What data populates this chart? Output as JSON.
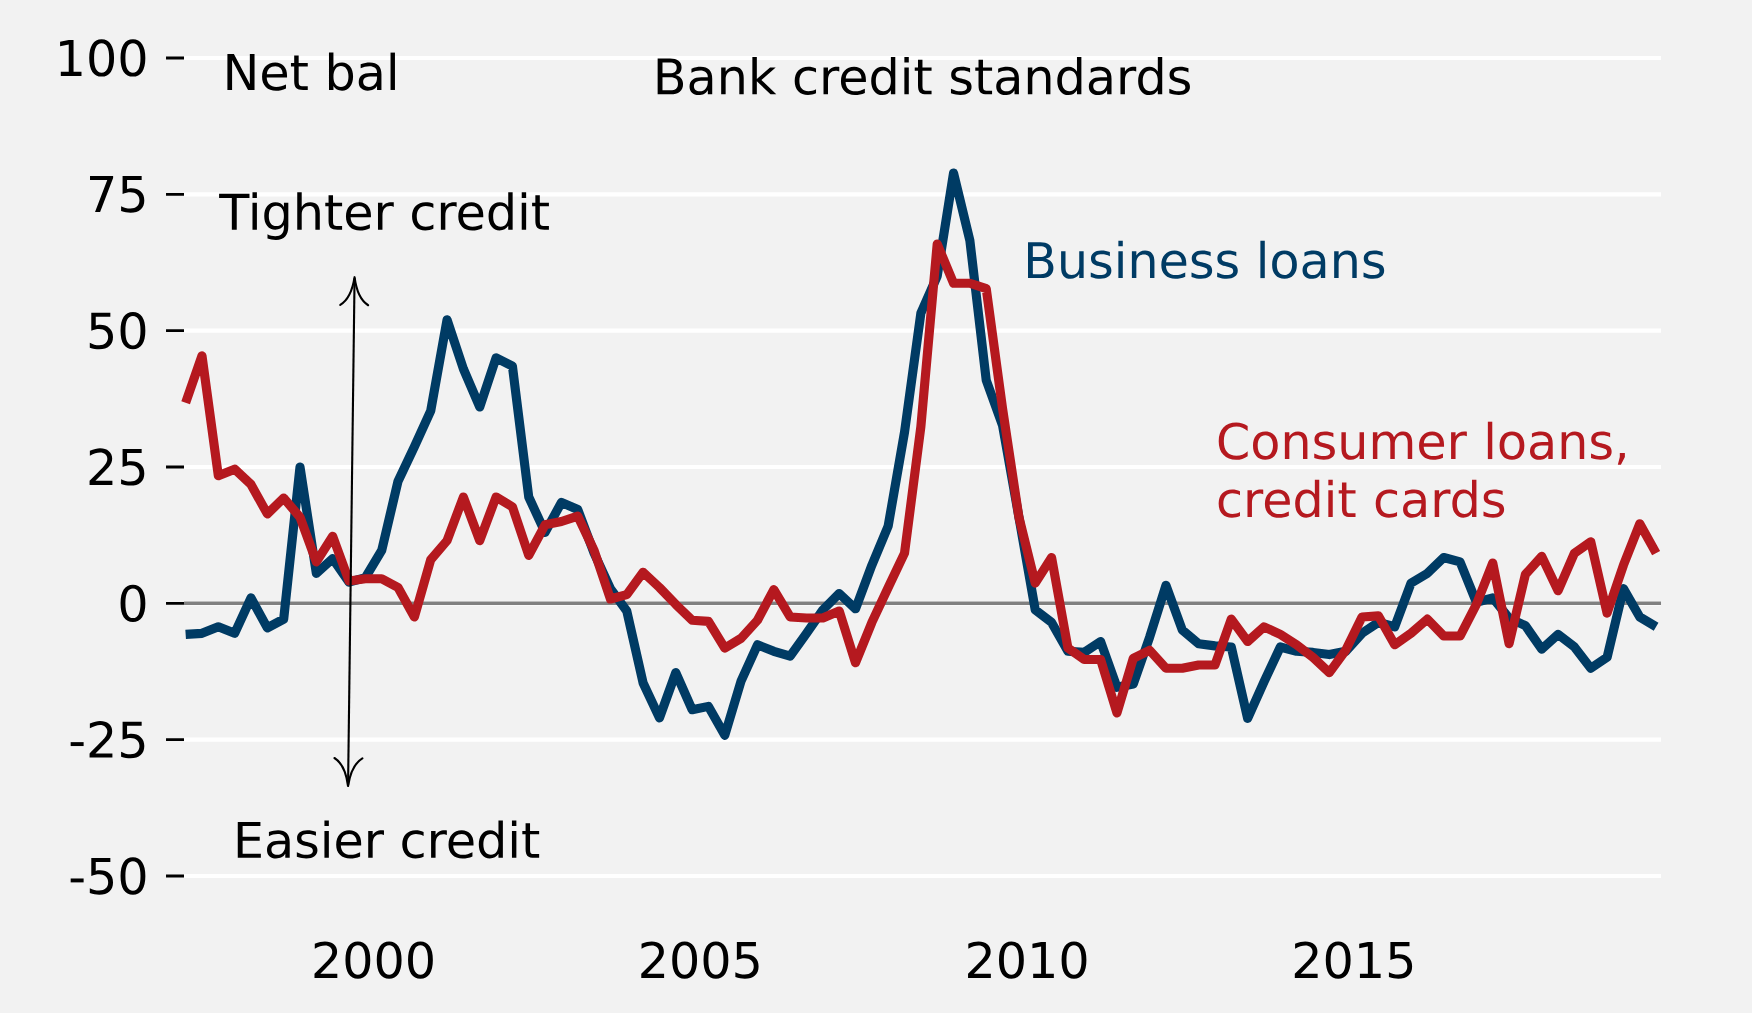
{
  "chart_data": {
    "type": "line",
    "title": "Bank credit standards",
    "ylabel": "Net bal",
    "annotations": [
      "Tighter credit",
      "Easier credit"
    ],
    "x": [
      1997.125,
      1997.375,
      1997.625,
      1997.875,
      1998.125,
      1998.375,
      1998.625,
      1998.875,
      1999.125,
      1999.375,
      1999.625,
      1999.875,
      2000.125,
      2000.375,
      2000.625,
      2000.875,
      2001.125,
      2001.375,
      2001.625,
      2001.875,
      2002.125,
      2002.375,
      2002.625,
      2002.875,
      2003.125,
      2003.375,
      2003.625,
      2003.875,
      2004.125,
      2004.375,
      2004.625,
      2004.875,
      2005.125,
      2005.375,
      2005.625,
      2005.875,
      2006.125,
      2006.375,
      2006.625,
      2006.875,
      2007.125,
      2007.375,
      2007.625,
      2007.875,
      2008.125,
      2008.375,
      2008.625,
      2008.875,
      2009.125,
      2009.375,
      2009.625,
      2009.875,
      2010.125,
      2010.375,
      2010.625,
      2010.875,
      2011.125,
      2011.375,
      2011.625,
      2011.875,
      2012.125,
      2012.375,
      2012.625,
      2012.875,
      2013.125,
      2013.375,
      2013.625,
      2013.875,
      2014.125,
      2014.375,
      2014.625,
      2014.875,
      2015.125,
      2015.375,
      2015.625,
      2015.875,
      2016.125,
      2016.375,
      2016.625,
      2016.875,
      2017.125,
      2017.375,
      2017.625,
      2017.875,
      2018.125,
      2018.375,
      2018.625,
      2018.875,
      2019.125,
      2019.375,
      2019.625
    ],
    "series": [
      {
        "name": "Business loans",
        "color": "#003b64",
        "values": [
          -5.7,
          -5.5,
          -4.3,
          -5.5,
          1.0,
          -4.5,
          -2.9,
          25,
          5.5,
          8.2,
          3.9,
          4.7,
          9.7,
          22.4,
          28.7,
          35.3,
          52,
          43,
          36,
          45,
          43.5,
          19.5,
          13,
          18.5,
          17.2,
          9.2,
          2.7,
          -1.4,
          -14.6,
          -21,
          -12.7,
          -19.5,
          -18.9,
          -24.2,
          -14.2,
          -7.6,
          -8.8,
          -9.7,
          -5.5,
          -1.2,
          1.8,
          -1.0,
          7,
          14.2,
          31.4,
          53.2,
          60,
          78.9,
          66.5,
          40.9,
          32.6,
          15.8,
          -1.2,
          -3.5,
          -8.8,
          -9,
          -7,
          -15.4,
          -14.8,
          -6.2,
          3.3,
          -4.9,
          -7.4,
          -7.8,
          -8,
          -21.1,
          -14.4,
          -8,
          -8.8,
          -9,
          -9.4,
          -8.8,
          -5.5,
          -3.5,
          -4.3,
          3.7,
          5.5,
          8.4,
          7.6,
          0.2,
          1,
          -2.7,
          -4.1,
          -8.4,
          -5.7,
          -8,
          -11.9,
          -9.9,
          2.7,
          -2.5,
          -4.3
        ]
      },
      {
        "name": "Consumer loans, credit cards",
        "color": "#b5191f",
        "values": [
          36.8,
          45.4,
          23.4,
          24.6,
          21.8,
          16.4,
          19.3,
          15.8,
          7.6,
          12.3,
          4.1,
          4.5,
          4.5,
          2.9,
          -2.5,
          8,
          11.5,
          19.5,
          11.5,
          19.5,
          17.7,
          8.8,
          14.4,
          15,
          16,
          9.7,
          0.8,
          1.6,
          5.7,
          2.9,
          -0.2,
          -3.1,
          -3.3,
          -8.2,
          -6.4,
          -3.1,
          2.5,
          -2.5,
          -2.7,
          -2.7,
          -1.4,
          -10.9,
          -3.5,
          2.9,
          9.2,
          32.4,
          65.9,
          58.7,
          58.7,
          57.7,
          35.7,
          15.8,
          3.7,
          8.4,
          -8.2,
          -10.3,
          -10.3,
          -20.1,
          -10.1,
          -8.6,
          -11.9,
          -11.9,
          -11.3,
          -11.3,
          -2.9,
          -7,
          -4.3,
          -5.7,
          -7.6,
          -9.9,
          -12.7,
          -8.6,
          -2.5,
          -2.3,
          -7.6,
          -5.5,
          -2.9,
          -6,
          -6,
          -0.2,
          7.4,
          -7.4,
          5.3,
          8.6,
          2.3,
          9.2,
          11.3,
          -1.8,
          7,
          14.6,
          9.2
        ]
      }
    ],
    "xlim": [
      1997.1,
      2019.7
    ],
    "xticks": [
      2000,
      2005,
      2010,
      2015
    ],
    "ylim": [
      -50,
      100
    ],
    "yticks": [
      -50,
      -25,
      0,
      25,
      50,
      75,
      100
    ],
    "grid": "y",
    "line_style": "solid",
    "marker": "none",
    "ref_lines": [
      {
        "axis": "y",
        "value": 0,
        "color": "#808080"
      }
    ]
  }
}
